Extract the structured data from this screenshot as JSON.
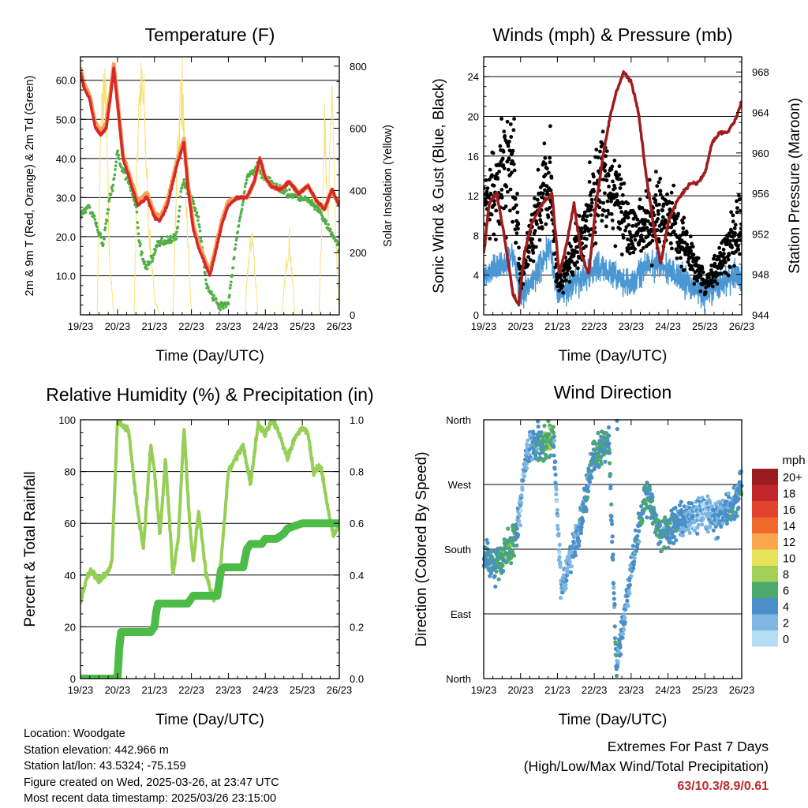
{
  "colors": {
    "temp_2m": "#d62828",
    "temp_9m": "#f4a259",
    "dewpoint": "#52ae47",
    "solar": "#f5e37a",
    "wind": "#4a97d4",
    "gust": "#000000",
    "pressure": "#a01c1c",
    "rh": "#95cf55",
    "precip": "#4cbb47"
  },
  "charts": [
    {
      "id": "temperature",
      "title": "Temperature (F)",
      "xlabel": "Time (Day/UTC)",
      "ylabel": "2m & 9m T (Red, Orange) & 2m Td (Green)",
      "ylabel_right": "Solar Insolation (Yellow)",
      "x_ticks": [
        "19/23",
        "20/23",
        "21/23",
        "22/23",
        "23/23",
        "24/23",
        "25/23",
        "26/23"
      ],
      "y_ticks": [
        "10.0",
        "20.0",
        "30.0",
        "40.0",
        "50.0",
        "60.0"
      ],
      "y_right_ticks": [
        "0",
        "200",
        "400",
        "600",
        "800"
      ]
    },
    {
      "id": "winds",
      "title": "Winds (mph) & Pressure (mb)",
      "xlabel": "Time (Day/UTC)",
      "ylabel": "Sonic Wind & Gust (Blue, Black)",
      "ylabel_right": "Station Pressure (Maroon)",
      "x_ticks": [
        "19/23",
        "20/23",
        "21/23",
        "22/23",
        "23/23",
        "24/23",
        "25/23",
        "26/23"
      ],
      "y_ticks": [
        "0",
        "4",
        "8",
        "12",
        "16",
        "20",
        "24"
      ],
      "y_right_ticks": [
        "944",
        "948",
        "952",
        "956",
        "960",
        "964",
        "968"
      ]
    },
    {
      "id": "humidity",
      "title": "Relative Humidity (%) & Precipitation (in)",
      "xlabel": "Time (Day/UTC)",
      "ylabel": "Percent & Total Rainfall",
      "ylabel_right": "",
      "x_ticks": [
        "19/23",
        "20/23",
        "21/23",
        "22/23",
        "23/23",
        "24/23",
        "25/23",
        "26/23"
      ],
      "y_ticks": [
        "0",
        "20",
        "40",
        "60",
        "80",
        "100"
      ],
      "y_right_ticks": [
        "0.0",
        "0.2",
        "0.4",
        "0.6",
        "0.8",
        "1.0"
      ]
    },
    {
      "id": "direction",
      "title": "Wind Direction",
      "xlabel": "Time (Day/UTC)",
      "ylabel": "Direction (Colored By Speed)",
      "ylabel_right": "",
      "x_ticks": [
        "19/23",
        "20/23",
        "21/23",
        "22/23",
        "23/23",
        "24/23",
        "25/23",
        "26/23"
      ],
      "y_ticks": [
        "North",
        "East",
        "South",
        "West",
        "North"
      ],
      "y_right_ticks": []
    }
  ],
  "legend": {
    "title": "mph",
    "labels": [
      "20+",
      "18",
      "16",
      "14",
      "12",
      "10",
      "8",
      "6",
      "4",
      "2",
      "0"
    ],
    "colors": [
      "#9b1c20",
      "#c3262b",
      "#e0432e",
      "#f06a2e",
      "#f9a64c",
      "#e6e35b",
      "#a2cf58",
      "#4aa96b",
      "#4a8fc9",
      "#7fb7e2",
      "#b5def5"
    ]
  },
  "station": {
    "location": "Location: Woodgate",
    "elevation": "Station elevation: 442.966 m",
    "latlon": "Station lat/lon: 43.5324; -75.159",
    "created": "Figure created on Wed, 2025-03-26, at 23:47 UTC",
    "recent": "Most recent data timestamp: 2025/03/26 23:15:00"
  },
  "extremes": {
    "title": "Extremes For Past 7 Days",
    "subtitle": "(High/Low/Max Wind/Total Precipitation)",
    "values": "63/10.3/8.9/0.61"
  },
  "chart_data": [
    {
      "type": "line",
      "x_unit": "days since 19/23 UTC",
      "x_range": [
        0,
        7
      ],
      "ylim": [
        0,
        66
      ],
      "y_right_lim": [
        0,
        830
      ],
      "series": [
        {
          "name": "2m T",
          "axis": "left",
          "x": [
            0,
            0.1,
            0.25,
            0.4,
            0.55,
            0.7,
            0.8,
            0.9,
            1.0,
            1.15,
            1.35,
            1.55,
            1.8,
            2.0,
            2.15,
            2.35,
            2.6,
            2.8,
            2.9,
            3.05,
            3.2,
            3.5,
            3.7,
            3.85,
            4.0,
            4.25,
            4.5,
            4.7,
            4.85,
            5.0,
            5.15,
            5.4,
            5.65,
            5.9,
            6.15,
            6.4,
            6.6,
            6.8,
            7.0
          ],
          "y": [
            62,
            58,
            55,
            48,
            46,
            48,
            55,
            63,
            54,
            40,
            34,
            28,
            30,
            25,
            24,
            28,
            38,
            44,
            33,
            22,
            17,
            10,
            18,
            24,
            28,
            30,
            30,
            34,
            40,
            35,
            33,
            32,
            34,
            31,
            33,
            29,
            27,
            32,
            28
          ]
        },
        {
          "name": "9m T",
          "axis": "left",
          "x": [
            0,
            0.1,
            0.25,
            0.4,
            0.55,
            0.7,
            0.8,
            0.9,
            1.0,
            1.15,
            1.35,
            1.55,
            1.8,
            2.0,
            2.15,
            2.35,
            2.6,
            2.8,
            2.9,
            3.05,
            3.2,
            3.5,
            3.7,
            3.85,
            4.0,
            4.25,
            4.5,
            4.7,
            4.85,
            5.0,
            5.15,
            5.4,
            5.65,
            5.9,
            6.15,
            6.4,
            6.6,
            6.8,
            7.0
          ],
          "y": [
            63,
            59,
            56,
            49,
            47,
            49,
            56,
            64,
            55,
            41,
            35,
            29,
            31,
            26,
            25,
            29,
            39,
            45,
            34,
            23,
            18,
            11,
            19,
            25,
            29,
            30,
            30,
            34,
            40,
            35,
            33,
            32,
            34,
            31,
            33,
            29,
            27,
            32,
            28
          ]
        },
        {
          "name": "2m Td",
          "axis": "left",
          "x": [
            0,
            0.2,
            0.4,
            0.6,
            0.8,
            0.9,
            1.0,
            1.1,
            1.3,
            1.5,
            1.6,
            1.75,
            1.9,
            2.1,
            2.3,
            2.6,
            2.75,
            2.85,
            3.0,
            3.2,
            3.4,
            3.6,
            3.8,
            4.0,
            4.2,
            4.5,
            4.8,
            4.9,
            5.1,
            5.3,
            5.6,
            5.9,
            6.2,
            6.5,
            6.7,
            6.85,
            7.0
          ],
          "y": [
            25,
            28,
            24,
            18,
            30,
            34,
            42,
            38,
            34,
            28,
            18,
            12,
            14,
            18,
            19,
            20,
            34,
            33,
            30,
            24,
            8,
            4,
            2,
            3,
            18,
            35,
            38,
            36,
            34,
            33,
            31,
            30,
            29,
            26,
            22,
            20,
            17
          ]
        },
        {
          "name": "Solar Insolation",
          "axis": "right",
          "x": [
            0,
            0.45,
            0.55,
            0.62,
            0.7,
            0.78,
            0.9,
            1.1,
            1.45,
            1.58,
            1.72,
            1.85,
            2.0,
            2.15,
            2.5,
            2.62,
            2.74,
            2.85,
            3.0,
            3.2,
            3.5,
            3.8,
            4.2,
            4.45,
            4.55,
            4.65,
            4.8,
            5.2,
            5.45,
            5.55,
            5.65,
            5.8,
            6.2,
            6.45,
            6.55,
            6.62,
            6.7,
            6.8,
            6.9,
            7.0
          ],
          "y": [
            0,
            0,
            620,
            780,
            700,
            200,
            0,
            0,
            0,
            790,
            720,
            300,
            60,
            0,
            0,
            560,
            820,
            400,
            0,
            0,
            0,
            0,
            0,
            0,
            200,
            280,
            0,
            0,
            0,
            150,
            260,
            0,
            0,
            0,
            420,
            700,
            300,
            800,
            260,
            0
          ]
        }
      ]
    },
    {
      "type": "scatter",
      "x_unit": "days since 19/23 UTC",
      "x_range": [
        0,
        7
      ],
      "ylim": [
        0,
        26
      ],
      "y_right_lim": [
        944,
        969.5
      ],
      "series": [
        {
          "name": "Sonic Wind (mean)",
          "axis": "left",
          "type": "line",
          "x": [
            0,
            0.4,
            0.8,
            1.0,
            1.4,
            1.8,
            2.0,
            2.4,
            2.8,
            3.2,
            3.6,
            4.0,
            4.4,
            4.8,
            5.2,
            5.6,
            6.0,
            6.4,
            6.8,
            7.0
          ],
          "y": [
            4,
            5,
            6,
            2,
            4,
            7,
            2,
            3,
            4,
            5,
            4,
            3,
            5,
            5,
            4,
            3,
            2,
            3,
            4,
            4
          ]
        },
        {
          "name": "Gust (mean)",
          "axis": "left",
          "type": "scatter",
          "x": [
            0,
            0.4,
            0.8,
            1.0,
            1.4,
            1.8,
            2.0,
            2.4,
            2.8,
            3.2,
            3.6,
            4.0,
            4.4,
            4.8,
            5.2,
            5.6,
            6.0,
            6.4,
            6.8,
            7.0
          ],
          "y": [
            10,
            14,
            16,
            3,
            10,
            15,
            3,
            6,
            10,
            13,
            12,
            8,
            9,
            11,
            9,
            6,
            3,
            5,
            8,
            9
          ]
        },
        {
          "name": "Station Pressure",
          "axis": "right",
          "type": "line",
          "x": [
            0,
            0.15,
            0.35,
            0.55,
            0.8,
            0.95,
            1.1,
            1.3,
            1.6,
            1.85,
            2.05,
            2.25,
            2.45,
            2.65,
            2.85,
            3.05,
            3.25,
            3.45,
            3.6,
            3.8,
            4.0,
            4.2,
            4.4,
            4.6,
            4.8,
            5.0,
            5.2,
            5.4,
            5.6,
            5.8,
            6.0,
            6.2,
            6.4,
            6.6,
            6.8,
            7.0
          ],
          "y": [
            950,
            955,
            956,
            952,
            946,
            945,
            950,
            953,
            955,
            956,
            948,
            951,
            955,
            950,
            948,
            955,
            960,
            964,
            966,
            968,
            967,
            964,
            958,
            953,
            949,
            953,
            955,
            956,
            957,
            957,
            958,
            961,
            962,
            962,
            963,
            965
          ]
        }
      ]
    },
    {
      "type": "line",
      "x_unit": "days since 19/23 UTC",
      "x_range": [
        0,
        7
      ],
      "ylim": [
        0,
        100
      ],
      "y_right_lim": [
        0,
        1
      ],
      "series": [
        {
          "name": "Relative Humidity",
          "axis": "left",
          "x": [
            0,
            0.15,
            0.3,
            0.5,
            0.7,
            0.85,
            1.0,
            1.1,
            1.3,
            1.5,
            1.7,
            1.9,
            2.0,
            2.15,
            2.3,
            2.5,
            2.65,
            2.8,
            2.95,
            3.05,
            3.2,
            3.4,
            3.6,
            3.8,
            4.0,
            4.2,
            4.4,
            4.6,
            4.8,
            5.0,
            5.2,
            5.4,
            5.6,
            5.8,
            6.0,
            6.15,
            6.3,
            6.5,
            6.7,
            6.85,
            7.0
          ],
          "y": [
            30,
            38,
            42,
            38,
            40,
            45,
            100,
            98,
            96,
            70,
            50,
            90,
            80,
            55,
            85,
            40,
            55,
            97,
            60,
            45,
            65,
            40,
            30,
            45,
            80,
            85,
            90,
            75,
            98,
            95,
            100,
            94,
            85,
            93,
            97,
            95,
            80,
            82,
            65,
            55,
            60
          ]
        },
        {
          "name": "Total Rainfall",
          "axis": "right",
          "x": [
            0,
            1.0,
            1.05,
            1.1,
            1.9,
            2.0,
            2.05,
            2.1,
            2.9,
            2.95,
            3.05,
            3.2,
            3.7,
            3.8,
            3.9,
            4.4,
            4.5,
            4.6,
            4.9,
            5.0,
            5.3,
            5.5,
            5.6,
            6.0,
            6.4,
            7.0
          ],
          "y": [
            0,
            0,
            0.12,
            0.18,
            0.18,
            0.2,
            0.26,
            0.29,
            0.29,
            0.3,
            0.32,
            0.32,
            0.32,
            0.42,
            0.43,
            0.43,
            0.5,
            0.52,
            0.52,
            0.54,
            0.54,
            0.56,
            0.58,
            0.6,
            0.6,
            0.6
          ]
        }
      ]
    },
    {
      "type": "scatter",
      "x_unit": "days since 19/23 UTC",
      "x_range": [
        0,
        7
      ],
      "y_unit": "degrees (0 = North, 90 = East, 180 = South, 270 = West, 360 = North)",
      "ylim": [
        0,
        360
      ],
      "series": [
        {
          "name": "Direction",
          "x": [
            0,
            0.3,
            0.6,
            0.9,
            1.1,
            1.3,
            1.6,
            1.9,
            2.1,
            2.4,
            2.7,
            2.9,
            3.1,
            3.4,
            3.6,
            3.9,
            4.1,
            4.4,
            4.8,
            5.2,
            5.6,
            6.0,
            6.4,
            6.8,
            7.0
          ],
          "y": [
            180,
            155,
            175,
            200,
            290,
            330,
            325,
            330,
            120,
            180,
            230,
            300,
            320,
            330,
            10,
            120,
            180,
            260,
            200,
            215,
            225,
            235,
            225,
            245,
            270
          ]
        }
      ]
    }
  ]
}
